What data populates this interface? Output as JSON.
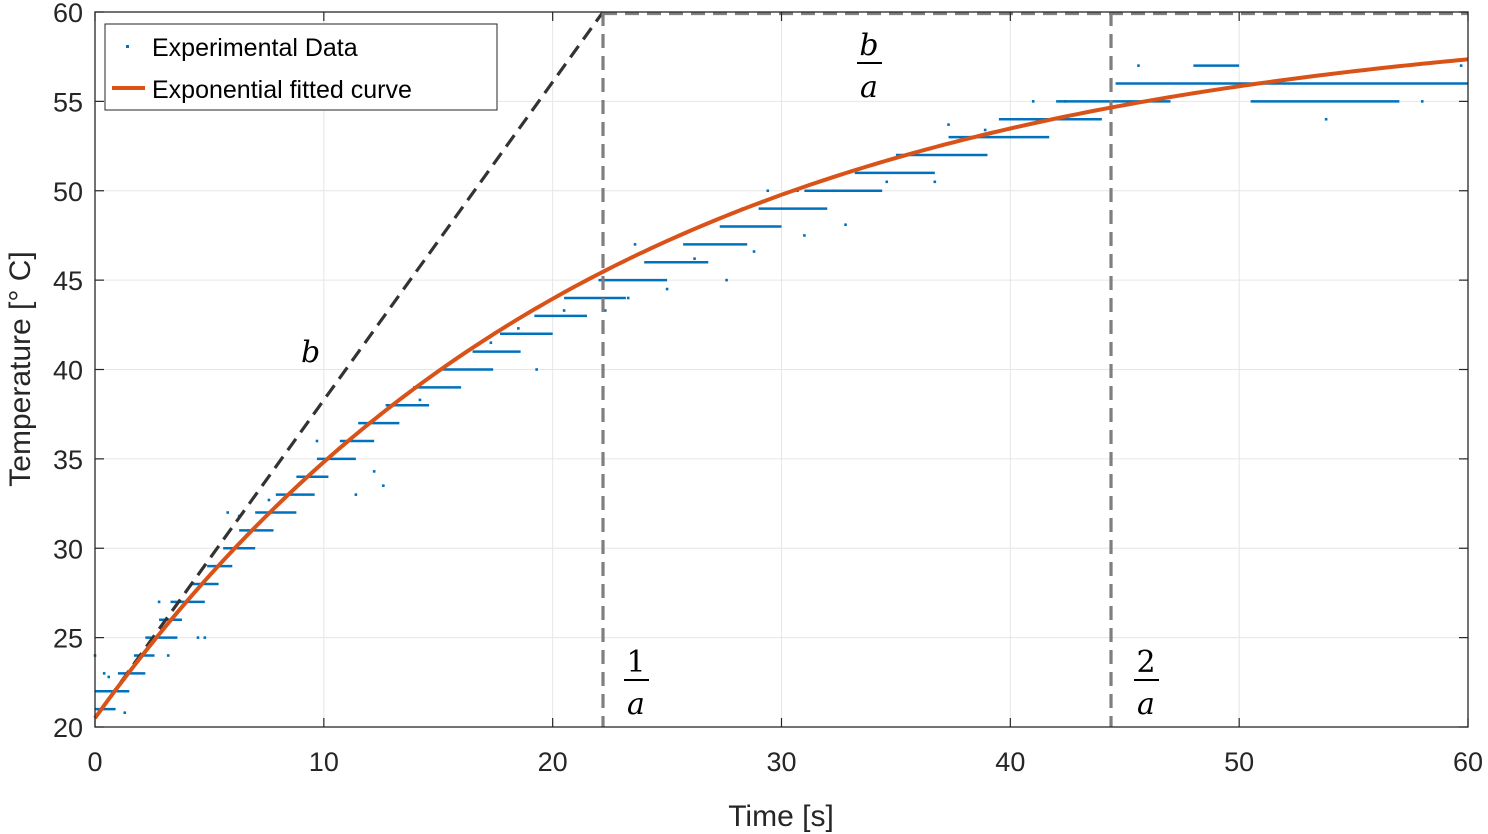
{
  "chart_data": {
    "type": "scatter",
    "xlabel": "Time [s]",
    "ylabel": "Temperature [° C]",
    "xlim": [
      0,
      60
    ],
    "ylim": [
      20,
      60
    ],
    "xticks": [
      "0",
      "10",
      "20",
      "30",
      "40",
      "50",
      "60"
    ],
    "yticks": [
      "20",
      "25",
      "30",
      "35",
      "40",
      "45",
      "50",
      "55",
      "60"
    ],
    "grid": true,
    "legend": {
      "placement": "top-left",
      "entries": [
        "Experimental Data",
        "Exponential fitted curve"
      ]
    },
    "colors": {
      "data": "#0072BD",
      "fit": "#D95319",
      "tangent": "#333333",
      "guides": "#7f7f7f"
    },
    "series": [
      {
        "name": "Experimental Data",
        "kind": "scatter",
        "segments": [
          {
            "y": 21,
            "x": [
              0.0,
              0.9
            ]
          },
          {
            "y": 22,
            "x": [
              0.0,
              1.5
            ]
          },
          {
            "y": 23,
            "x": [
              1.0,
              2.2
            ]
          },
          {
            "y": 24,
            "x": [
              1.7,
              2.6
            ]
          },
          {
            "y": 25,
            "x": [
              2.2,
              3.6
            ]
          },
          {
            "y": 26,
            "x": [
              2.8,
              3.8
            ]
          },
          {
            "y": 27,
            "x": [
              3.3,
              4.8
            ]
          },
          {
            "y": 28,
            "x": [
              4.2,
              5.4
            ]
          },
          {
            "y": 29,
            "x": [
              4.9,
              6.0
            ]
          },
          {
            "y": 30,
            "x": [
              5.6,
              7.0
            ]
          },
          {
            "y": 31,
            "x": [
              6.3,
              7.8
            ]
          },
          {
            "y": 32,
            "x": [
              7.0,
              8.8
            ]
          },
          {
            "y": 33,
            "x": [
              7.9,
              9.6
            ]
          },
          {
            "y": 34,
            "x": [
              8.8,
              10.2
            ]
          },
          {
            "y": 35,
            "x": [
              9.7,
              11.4
            ]
          },
          {
            "y": 36,
            "x": [
              10.7,
              12.2
            ]
          },
          {
            "y": 37,
            "x": [
              11.5,
              13.3
            ]
          },
          {
            "y": 38,
            "x": [
              12.7,
              14.6
            ]
          },
          {
            "y": 39,
            "x": [
              13.9,
              16.0
            ]
          },
          {
            "y": 40,
            "x": [
              15.2,
              17.4
            ]
          },
          {
            "y": 41,
            "x": [
              16.5,
              18.6
            ]
          },
          {
            "y": 42,
            "x": [
              17.7,
              20.0
            ]
          },
          {
            "y": 43,
            "x": [
              19.2,
              21.5
            ]
          },
          {
            "y": 44,
            "x": [
              20.5,
              23.2
            ]
          },
          {
            "y": 45,
            "x": [
              22.0,
              25.0
            ]
          },
          {
            "y": 46,
            "x": [
              24.0,
              26.8
            ]
          },
          {
            "y": 47,
            "x": [
              25.7,
              28.5
            ]
          },
          {
            "y": 48,
            "x": [
              27.3,
              30.0
            ]
          },
          {
            "y": 49,
            "x": [
              29.0,
              32.0
            ]
          },
          {
            "y": 50,
            "x": [
              31.0,
              34.4
            ]
          },
          {
            "y": 51,
            "x": [
              33.2,
              36.7
            ]
          },
          {
            "y": 52,
            "x": [
              35.0,
              39.0
            ]
          },
          {
            "y": 53,
            "x": [
              37.3,
              41.7
            ]
          },
          {
            "y": 54,
            "x": [
              39.5,
              44.0
            ]
          },
          {
            "y": 55,
            "x": [
              42.0,
              47.0
            ]
          },
          {
            "y": 56,
            "x": [
              44.6,
              60.0
            ]
          },
          {
            "y": 55,
            "x": [
              50.5,
              57.0
            ]
          },
          {
            "y": 57,
            "x": [
              48.0,
              50.0
            ]
          }
        ],
        "outliers": [
          [
            0.0,
            24
          ],
          [
            0.4,
            23
          ],
          [
            1.3,
            20.8
          ],
          [
            0.6,
            22.8
          ],
          [
            2.8,
            27
          ],
          [
            4.5,
            25
          ],
          [
            4.8,
            25
          ],
          [
            3.2,
            24
          ],
          [
            5.8,
            32
          ],
          [
            6.3,
            31.8
          ],
          [
            7.6,
            32.7
          ],
          [
            9.7,
            36
          ],
          [
            11.4,
            33
          ],
          [
            12.2,
            34.3
          ],
          [
            12.6,
            33.5
          ],
          [
            14.2,
            38.3
          ],
          [
            17.3,
            41.5
          ],
          [
            18.5,
            42.3
          ],
          [
            19.3,
            40
          ],
          [
            20.5,
            43.3
          ],
          [
            22.3,
            43.3
          ],
          [
            23.3,
            44
          ],
          [
            23.6,
            47
          ],
          [
            25.0,
            44.5
          ],
          [
            26.2,
            46.2
          ],
          [
            27.6,
            45
          ],
          [
            28.3,
            49
          ],
          [
            28.8,
            46.6
          ],
          [
            29.4,
            50
          ],
          [
            30.7,
            50
          ],
          [
            31.0,
            47.5
          ],
          [
            32.3,
            50
          ],
          [
            32.8,
            48.1
          ],
          [
            33.4,
            51.2
          ],
          [
            34.6,
            50.5
          ],
          [
            36.7,
            50.5
          ],
          [
            37.3,
            53.7
          ],
          [
            38.9,
            53.4
          ],
          [
            41.0,
            55
          ],
          [
            42.4,
            55
          ],
          [
            45.6,
            57
          ],
          [
            53.8,
            54
          ],
          [
            57.3,
            57
          ],
          [
            58.0,
            55
          ],
          [
            59.7,
            57
          ]
        ]
      },
      {
        "name": "Exponential fitted curve",
        "kind": "line",
        "model": {
          "T0": 20.5,
          "T_inf": 60.0,
          "tau": 22.2
        }
      }
    ],
    "annotations": [
      {
        "label": "b",
        "kind": "tangent-line",
        "x": [
          0,
          22.2
        ],
        "y": [
          20.5,
          60
        ]
      },
      {
        "label_num": "1",
        "label_den": "a",
        "kind": "vertical-guide",
        "x": 22.2
      },
      {
        "label_num": "2",
        "label_den": "a",
        "kind": "vertical-guide",
        "x": 44.4
      },
      {
        "label_num": "b",
        "label_den": "a",
        "kind": "horizontal-guide",
        "y": 60
      }
    ]
  }
}
